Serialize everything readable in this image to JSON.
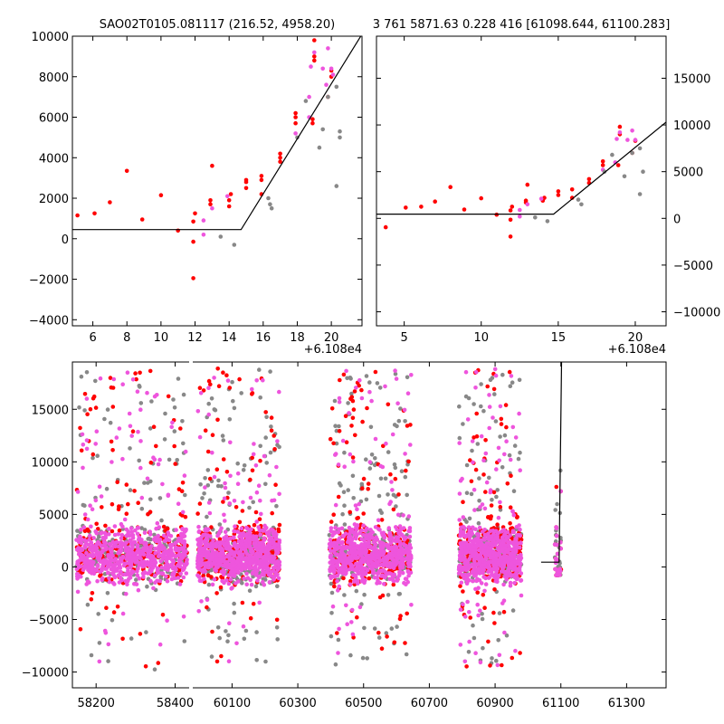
{
  "chart_data": [
    {
      "type": "scatter",
      "name": "top-left",
      "title": "SAO02T0105.081117 (216.52, 4958.20)",
      "xlim": [
        4.8,
        21.8
      ],
      "ylim": [
        -4300,
        10000
      ],
      "xticks": [
        6,
        8,
        10,
        12,
        14,
        16,
        18,
        20
      ],
      "yticks": [
        -4000,
        -2000,
        0,
        2000,
        4000,
        6000,
        8000,
        10000
      ],
      "x_offset_label": "+6.108e4",
      "yaxis_side": "left",
      "model_line": [
        [
          4.8,
          450
        ],
        [
          14.7,
          450
        ],
        [
          21.8,
          10100
        ]
      ],
      "series": [
        {
          "name": "red",
          "color": "#ff0000",
          "points": [
            [
              5.1,
              1150
            ],
            [
              6.1,
              1250
            ],
            [
              7.0,
              1800
            ],
            [
              8.0,
              3350
            ],
            [
              8.9,
              950
            ],
            [
              10.0,
              2150
            ],
            [
              11.0,
              400
            ],
            [
              11.9,
              850
            ],
            [
              11.9,
              -150
            ],
            [
              11.9,
              -1950
            ],
            [
              12.0,
              1250
            ],
            [
              12.9,
              1900
            ],
            [
              12.9,
              1700
            ],
            [
              13.0,
              3600
            ],
            [
              14.0,
              1900
            ],
            [
              14.1,
              2200
            ],
            [
              14.0,
              1600
            ],
            [
              15.0,
              2500
            ],
            [
              15.0,
              2900
            ],
            [
              15.0,
              2800
            ],
            [
              15.9,
              3100
            ],
            [
              15.9,
              2200
            ],
            [
              15.9,
              2900
            ],
            [
              17.0,
              4200
            ],
            [
              17.0,
              4000
            ],
            [
              17.0,
              3800
            ],
            [
              17.9,
              5700
            ],
            [
              17.9,
              6000
            ],
            [
              17.9,
              6200
            ],
            [
              18.9,
              5700
            ],
            [
              18.9,
              5900
            ],
            [
              19.0,
              9000
            ],
            [
              19.0,
              8800
            ],
            [
              19.0,
              9800
            ],
            [
              19.8,
              7000
            ],
            [
              20.0,
              8300
            ],
            [
              20.0,
              8000
            ]
          ]
        },
        {
          "name": "magenta",
          "color": "#ee55dd",
          "points": [
            [
              12.5,
              900
            ],
            [
              12.5,
              200
            ],
            [
              13.0,
              1500
            ],
            [
              13.9,
              2100
            ],
            [
              17.9,
              5200
            ],
            [
              18.7,
              6000
            ],
            [
              18.7,
              7000
            ],
            [
              18.8,
              8500
            ],
            [
              19.0,
              9200
            ],
            [
              19.5,
              8400
            ],
            [
              19.7,
              7600
            ],
            [
              19.8,
              9400
            ],
            [
              20.0,
              8400
            ],
            [
              20.1,
              8100
            ]
          ]
        },
        {
          "name": "gray",
          "color": "#888888",
          "points": [
            [
              13.5,
              100
            ],
            [
              14.3,
              -300
            ],
            [
              16.3,
              2000
            ],
            [
              16.4,
              1700
            ],
            [
              16.5,
              1500
            ],
            [
              18.0,
              5000
            ],
            [
              18.5,
              6800
            ],
            [
              19.3,
              4500
            ],
            [
              19.5,
              5400
            ],
            [
              19.8,
              7000
            ],
            [
              20.3,
              7500
            ],
            [
              20.3,
              2600
            ],
            [
              20.5,
              5000
            ],
            [
              20.5,
              5300
            ]
          ]
        }
      ]
    },
    {
      "type": "scatter",
      "name": "top-right",
      "title": "3 761 5871.63 0.228 416 [61098.644, 61100.283]",
      "xlim": [
        3.2,
        22.0
      ],
      "ylim": [
        -11500,
        19500
      ],
      "xticks": [
        5,
        10,
        15,
        20
      ],
      "yticks": [
        -10000,
        -5000,
        0,
        5000,
        10000,
        15000
      ],
      "x_offset_label": "+6.108e4",
      "yaxis_side": "right",
      "model_line": [
        [
          3.2,
          450
        ],
        [
          14.7,
          450
        ],
        [
          22.0,
          10300
        ]
      ],
      "series": [
        {
          "name": "red",
          "color": "#ff0000",
          "points": [
            [
              3.8,
              -950
            ],
            [
              5.1,
              1150
            ],
            [
              6.1,
              1250
            ],
            [
              7.0,
              1800
            ],
            [
              8.0,
              3350
            ],
            [
              8.9,
              950
            ],
            [
              10.0,
              2150
            ],
            [
              11.0,
              400
            ],
            [
              11.9,
              850
            ],
            [
              11.9,
              -150
            ],
            [
              11.9,
              -1950
            ],
            [
              12.0,
              1250
            ],
            [
              12.9,
              1900
            ],
            [
              12.9,
              1700
            ],
            [
              13.0,
              3600
            ],
            [
              14.0,
              1900
            ],
            [
              14.1,
              2200
            ],
            [
              15.0,
              2500
            ],
            [
              15.0,
              2900
            ],
            [
              15.9,
              3100
            ],
            [
              15.9,
              2200
            ],
            [
              17.0,
              4200
            ],
            [
              17.0,
              3800
            ],
            [
              17.9,
              5700
            ],
            [
              17.9,
              6100
            ],
            [
              18.9,
              5700
            ],
            [
              19.0,
              9000
            ],
            [
              19.0,
              9800
            ],
            [
              19.8,
              7000
            ],
            [
              20.0,
              8300
            ]
          ]
        },
        {
          "name": "magenta",
          "color": "#ee55dd",
          "points": [
            [
              12.5,
              900
            ],
            [
              12.5,
              200
            ],
            [
              13.0,
              1500
            ],
            [
              13.9,
              2100
            ],
            [
              17.9,
              5200
            ],
            [
              18.7,
              6000
            ],
            [
              18.8,
              8500
            ],
            [
              19.0,
              9200
            ],
            [
              19.5,
              8400
            ],
            [
              19.8,
              9400
            ],
            [
              20.0,
              8400
            ]
          ]
        },
        {
          "name": "gray",
          "color": "#888888",
          "points": [
            [
              13.5,
              100
            ],
            [
              14.3,
              -300
            ],
            [
              16.3,
              2000
            ],
            [
              16.5,
              1500
            ],
            [
              18.0,
              5000
            ],
            [
              18.5,
              6800
            ],
            [
              19.3,
              4500
            ],
            [
              19.8,
              7000
            ],
            [
              20.3,
              7500
            ],
            [
              20.3,
              2600
            ],
            [
              20.5,
              5000
            ]
          ]
        }
      ]
    },
    {
      "type": "scatter",
      "name": "bottom",
      "xlim_segments": [
        [
          58140,
          58440
        ],
        [
          59975,
          61420
        ]
      ],
      "ylim": [
        -11500,
        19500
      ],
      "xticks": [
        58200,
        58400,
        60100,
        60300,
        60500,
        60700,
        60900,
        61100,
        61300
      ],
      "yticks": [
        -10000,
        -5000,
        0,
        5000,
        10000,
        15000
      ],
      "observing_seasons": [
        [
          58150,
          58430
        ],
        [
          59995,
          60245
        ],
        [
          60395,
          60645
        ],
        [
          60790,
          60980
        ],
        [
          61082,
          61101
        ]
      ],
      "model_line": [
        [
          61040,
          450
        ],
        [
          61094.7,
          450
        ],
        [
          61102,
          19500
        ]
      ],
      "scatter_profile": {
        "core_range": [
          -800,
          3000
        ],
        "spread": 9000,
        "colors": [
          "#888888",
          "#ff0000",
          "#ee55dd"
        ]
      }
    }
  ]
}
